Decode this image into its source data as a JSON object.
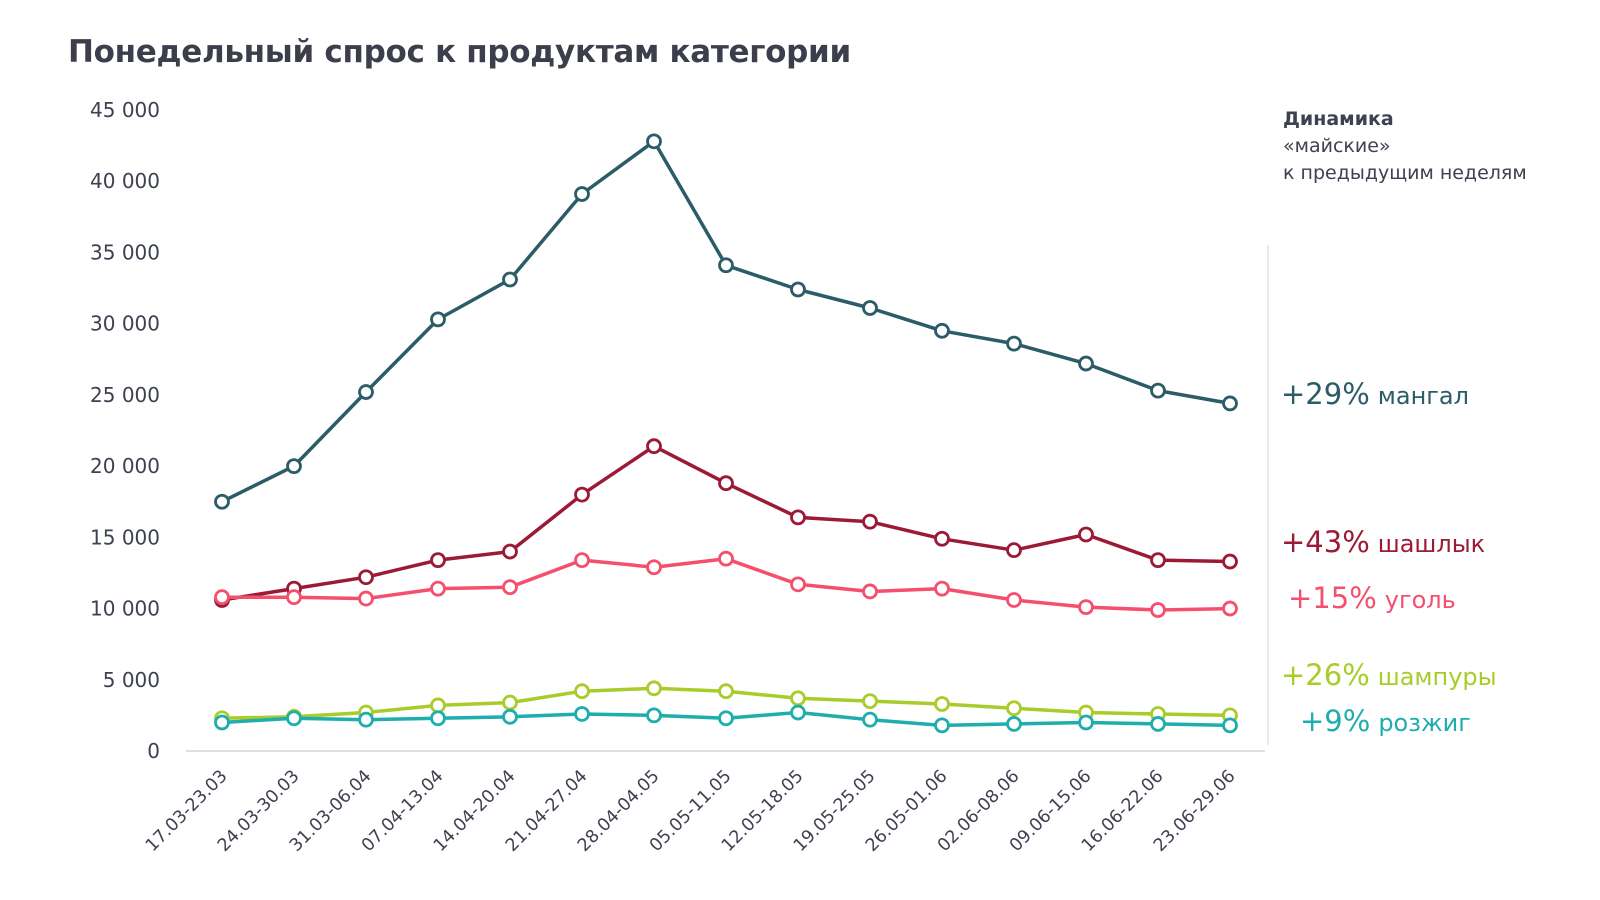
{
  "chart_data": {
    "type": "line",
    "title": "Понедельный спрос к продуктам категории",
    "xlabel": "",
    "ylabel": "",
    "ylim": [
      0,
      45000
    ],
    "yticks": [
      0,
      5000,
      10000,
      15000,
      20000,
      25000,
      30000,
      35000,
      40000,
      45000
    ],
    "ytick_labels": [
      "0",
      "5 000",
      "10 000",
      "15 000",
      "20 000",
      "25 000",
      "30 000",
      "35 000",
      "40 000",
      "45 000"
    ],
    "grid": false,
    "categories": [
      "17.03-23.03",
      "24.03-30.03",
      "31.03-06.04",
      "07.04-13.04",
      "14.04-20.04",
      "21.04-27.04",
      "28.04-04.05",
      "05.05-11.05",
      "12.05-18.05",
      "19.05-25.05",
      "26.05-01.06",
      "02.06-08.06",
      "09.06-15.06",
      "16.06-22.06",
      "23.06-29.06"
    ],
    "series": [
      {
        "name": "мангал",
        "change": "+29%",
        "color": "#2b5c67",
        "values": [
          17500,
          20000,
          25200,
          30300,
          33100,
          39100,
          42800,
          34100,
          32400,
          31100,
          29500,
          28600,
          27200,
          25300,
          24400
        ]
      },
      {
        "name": "шашлык",
        "change": "+43%",
        "color": "#9b1a35",
        "values": [
          10600,
          11400,
          12200,
          13400,
          14000,
          18000,
          21400,
          18800,
          16400,
          16100,
          14900,
          14100,
          15200,
          13400,
          13300
        ]
      },
      {
        "name": "уголь",
        "change": "+15%",
        "color": "#f4506e",
        "values": [
          10800,
          10800,
          10700,
          11400,
          11500,
          13400,
          12900,
          13500,
          11700,
          11200,
          11400,
          10600,
          10100,
          9900,
          10000
        ]
      },
      {
        "name": "шампуры",
        "change": "+26%",
        "color": "#a9cc2b",
        "values": [
          2300,
          2400,
          2700,
          3200,
          3400,
          4200,
          4400,
          4200,
          3700,
          3500,
          3300,
          3000,
          2700,
          2600,
          2500
        ]
      },
      {
        "name": "розжиг",
        "change": "+9%",
        "color": "#1fadad",
        "values": [
          2000,
          2300,
          2200,
          2300,
          2400,
          2600,
          2500,
          2300,
          2700,
          2200,
          1800,
          1900,
          2000,
          1900,
          1800
        ]
      }
    ]
  },
  "note": {
    "heading": "Динамика",
    "line1": "«майские»",
    "line2": "к предыдущим неделям"
  }
}
